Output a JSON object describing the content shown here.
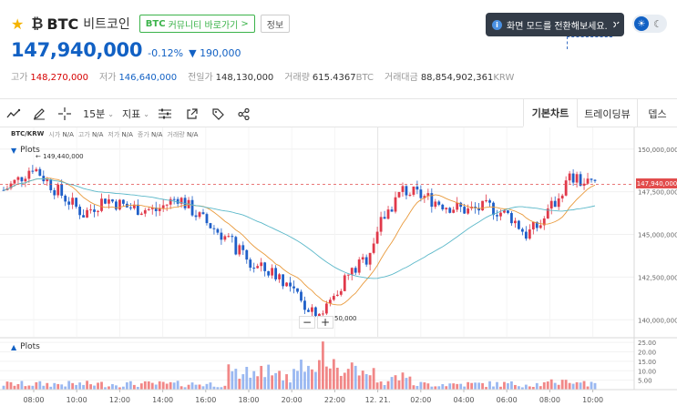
{
  "header": {
    "symbol": "BTC",
    "name": "비트코인",
    "community_btn": {
      "prefix": "BTC",
      "label": "커뮤니티 바로가기",
      "arrow": ">"
    },
    "info_btn": "정보"
  },
  "price": {
    "current": "147,940,000",
    "change_rate": "-0.12%",
    "change_arrow": "▼",
    "change_amount": "190,000"
  },
  "stats": [
    {
      "label": "고가",
      "value": "148,270,000",
      "tone": "up",
      "unit": ""
    },
    {
      "label": "저가",
      "value": "146,640,000",
      "tone": "down",
      "unit": ""
    },
    {
      "label": "전일가",
      "value": "148,130,000",
      "tone": "neu",
      "unit": ""
    },
    {
      "label": "거래량",
      "value": "615.4367",
      "tone": "neu",
      "unit": "BTC"
    },
    {
      "label": "거래대금",
      "value": "88,854,902,361",
      "tone": "neu",
      "unit": "KRW"
    }
  ],
  "tooltip": {
    "icon": "i",
    "text": "화면 모드를 전환해보세요.",
    "close": "✕"
  },
  "toolbar": {
    "interval": "15분",
    "indicator": "지표",
    "tabs": [
      "기본차트",
      "트레이딩뷰",
      "뎁스"
    ]
  },
  "chart": {
    "pair": "BTC/KRW",
    "ohlc": [
      {
        "label": "시가",
        "value": "N/A"
      },
      {
        "label": "고가",
        "value": "N/A"
      },
      {
        "label": "저가",
        "value": "N/A"
      },
      {
        "label": "종가",
        "value": "N/A"
      },
      {
        "label": "거래량",
        "value": "N/A"
      }
    ],
    "legend": "Plots",
    "volume_legend": "Plots",
    "high_annotation": "← 149,440,000",
    "low_annotation": "50,000",
    "current_price_tag": "147,940,000",
    "zoom_out": "−",
    "zoom_in": "+"
  },
  "chart_data": {
    "type": "candlestick",
    "y_ticks": [
      "150,000,000",
      "147,500,000",
      "145,000,000",
      "142,500,000",
      "140,000,000"
    ],
    "ylim": [
      139000000,
      151000000
    ],
    "volume_ticks": [
      "25.00",
      "20.00",
      "15.00",
      "10.00",
      "5.00"
    ],
    "volume_ylim": [
      0,
      27
    ],
    "x_ticks": [
      "08:00",
      "10:00",
      "12:00",
      "14:00",
      "16:00",
      "18:00",
      "20:00",
      "22:00",
      "12. 21.",
      "02:00",
      "04:00",
      "06:00",
      "08:00",
      "10:00"
    ],
    "high": 149440000,
    "low": 140050000,
    "last": 147940000
  }
}
